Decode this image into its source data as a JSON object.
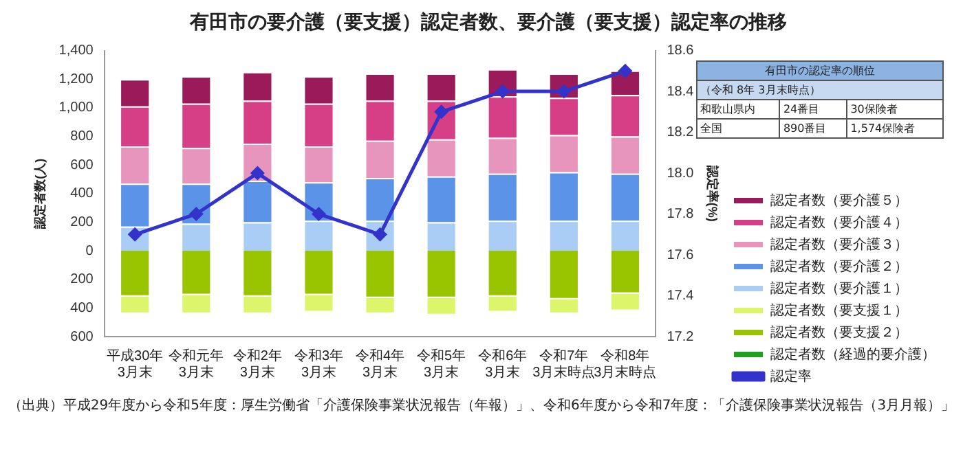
{
  "chart_data": {
    "type": "bar",
    "title": "有田市の要介護（要支援）認定者数、要介護（要支援）認定率の推移",
    "ylabel": "認定者数(人)",
    "y2label": "認定率(%)",
    "categories": [
      "平成30年\n3月末",
      "令和元年\n3月末",
      "令和2年\n3月末",
      "令和3年\n3月末",
      "令和4年\n3月末",
      "令和5年\n3月末",
      "令和6年\n3月末",
      "令和7年\n3月末時点",
      "令和8年\n3月末時点"
    ],
    "stacked": true,
    "grid": false,
    "legend": "right",
    "ylim": [
      -600,
      1400
    ],
    "yticks": [
      {
        "value": -600,
        "label": "600"
      },
      {
        "value": -400,
        "label": "400"
      },
      {
        "value": -200,
        "label": "200"
      },
      0,
      200,
      400,
      600,
      800,
      "1,000",
      "1,200",
      "1,400"
    ],
    "y2lim": [
      17.2,
      18.6
    ],
    "y2ticks": [
      17.2,
      17.4,
      17.6,
      17.8,
      {
        "value": 18,
        "label": "18.0"
      },
      18.2,
      18.4,
      18.6
    ],
    "series": [
      {
        "name": "認定者数（要介護１）",
        "color": "#a9cdf5",
        "values": [
          170,
          190,
          200,
          210,
          210,
          200,
          210,
          210,
          210
        ]
      },
      {
        "name": "認定者数（要介護２）",
        "color": "#5b93e8",
        "values": [
          300,
          280,
          290,
          270,
          300,
          320,
          330,
          340,
          330
        ]
      },
      {
        "name": "認定者数（要介護３）",
        "color": "#e795bd",
        "values": [
          260,
          250,
          260,
          250,
          260,
          260,
          250,
          260,
          260
        ]
      },
      {
        "name": "認定者数（要介護４）",
        "color": "#d63f86",
        "values": [
          280,
          310,
          300,
          300,
          280,
          270,
          290,
          260,
          290
        ]
      },
      {
        "name": "認定者数（要介護５）",
        "color": "#9b1b5a",
        "values": [
          190,
          190,
          200,
          190,
          190,
          190,
          190,
          170,
          170
        ]
      },
      {
        "name": "認定者数（要支援２）",
        "color": "#99c400",
        "values": [
          -320,
          -310,
          -320,
          -310,
          -330,
          -330,
          -320,
          -340,
          -300
        ]
      },
      {
        "name": "認定者数（要支援１）",
        "color": "#ddf56a",
        "values": [
          -120,
          -130,
          -120,
          -120,
          -110,
          -120,
          -110,
          -100,
          -120
        ]
      },
      {
        "name": "認定者数（経過的要介護）",
        "color": "#20a020",
        "values": [
          0,
          0,
          0,
          0,
          0,
          0,
          0,
          0,
          0
        ]
      },
      {
        "name": "認定率",
        "type": "line",
        "axis": "y2",
        "color": "#3333cc",
        "marker": "diamond",
        "line_style": "solid",
        "values": [
          17.7,
          17.8,
          18.0,
          17.8,
          17.7,
          18.3,
          18.4,
          18.4,
          18.5
        ]
      }
    ],
    "annotations": [
      "有田市の認定率の順位",
      "（令和 8年 3月末時点）",
      "和歌山県内",
      "24番目",
      "30保険者",
      "全国",
      "890番目",
      "1,574保険者",
      "（出典）平成29年度から令和5年度：厚生労働省「介護保険事業状況報告（年報）」、令和6年度から令和7年度：「介護保険事業状況報告（3月月報）」"
    ]
  }
}
